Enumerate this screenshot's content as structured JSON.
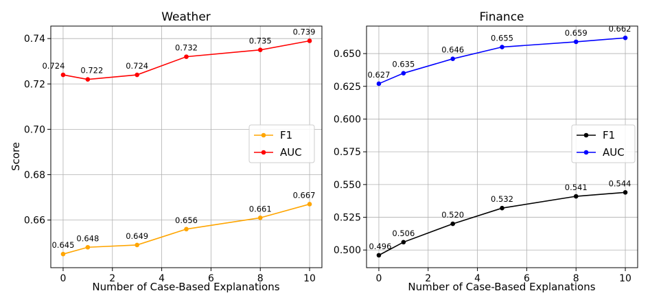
{
  "chart_data": [
    {
      "type": "line",
      "title": "Weather",
      "xlabel": "Number of Case-Based Explanations",
      "ylabel": "Score",
      "x": [
        0,
        1,
        3,
        5,
        8,
        10
      ],
      "xlim": [
        -0.5,
        10.5
      ],
      "ylim": [
        0.639,
        0.7455
      ],
      "xticks": [
        0,
        2,
        4,
        6,
        8,
        10
      ],
      "yticks": [
        0.66,
        0.68,
        0.7,
        0.72,
        0.74
      ],
      "ytick_labels": [
        "0.66",
        "0.68",
        "0.70",
        "0.72",
        "0.74"
      ],
      "grid": true,
      "legend_position": "center-right",
      "series": [
        {
          "name": "F1",
          "color": "#ffa500",
          "values": [
            0.645,
            0.648,
            0.649,
            0.656,
            0.661,
            0.667
          ],
          "labels": [
            "0.645",
            "0.648",
            "0.649",
            "0.656",
            "0.661",
            "0.667"
          ]
        },
        {
          "name": "AUC",
          "color": "#ff0000",
          "values": [
            0.724,
            0.722,
            0.724,
            0.732,
            0.735,
            0.739
          ],
          "labels": [
            "0.724",
            "0.722",
            "0.724",
            "0.732",
            "0.735",
            "0.739"
          ]
        }
      ]
    },
    {
      "type": "line",
      "title": "Finance",
      "xlabel": "Number of Case-Based Explanations",
      "ylabel": "",
      "x": [
        0,
        1,
        3,
        5,
        8,
        10
      ],
      "xlim": [
        -0.5,
        10.5
      ],
      "ylim": [
        0.4865,
        0.671
      ],
      "xticks": [
        0,
        2,
        4,
        6,
        8,
        10
      ],
      "yticks": [
        0.5,
        0.525,
        0.55,
        0.575,
        0.6,
        0.625,
        0.65
      ],
      "ytick_labels": [
        "0.500",
        "0.525",
        "0.550",
        "0.575",
        "0.600",
        "0.625",
        "0.650"
      ],
      "grid": true,
      "legend_position": "center-right",
      "series": [
        {
          "name": "F1",
          "color": "#000000",
          "values": [
            0.496,
            0.506,
            0.52,
            0.532,
            0.541,
            0.544
          ],
          "labels": [
            "0.496",
            "0.506",
            "0.520",
            "0.532",
            "0.541",
            "0.544"
          ]
        },
        {
          "name": "AUC",
          "color": "#0000ff",
          "values": [
            0.627,
            0.635,
            0.646,
            0.655,
            0.659,
            0.662
          ],
          "labels": [
            "0.627",
            "0.635",
            "0.646",
            "0.655",
            "0.659",
            "0.662"
          ]
        }
      ]
    }
  ]
}
